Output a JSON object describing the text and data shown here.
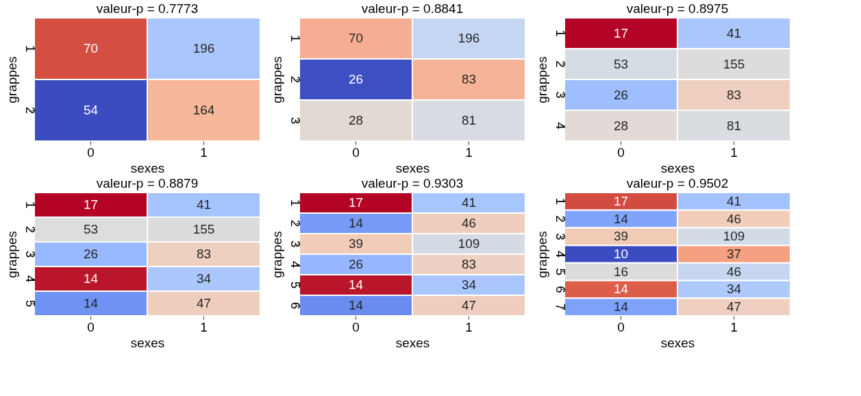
{
  "chart_data": [
    {
      "type": "heatmap",
      "data_labels": true,
      "title": "valeur-p = 0.7773",
      "xlabel": "sexes",
      "ylabel": "grappes",
      "categories": [
        "0",
        "1"
      ],
      "y_categories": [
        "1",
        "2"
      ],
      "cells": [
        [
          70,
          196
        ],
        [
          54,
          164
        ]
      ],
      "colors": [
        [
          "#d44e41",
          "#aac7fd"
        ],
        [
          "#3b4cc0",
          "#f6b79a"
        ]
      ]
    },
    {
      "type": "heatmap",
      "data_labels": true,
      "title": "valeur-p = 0.8841",
      "xlabel": "sexes",
      "ylabel": "grappes",
      "categories": [
        "0",
        "1"
      ],
      "y_categories": [
        "1",
        "2",
        "3"
      ],
      "cells": [
        [
          70,
          196
        ],
        [
          26,
          83
        ],
        [
          28,
          81
        ]
      ],
      "colors": [
        [
          "#f5ae94",
          "#c5d6f2"
        ],
        [
          "#3d50c3",
          "#f5b497"
        ],
        [
          "#e3d9d3",
          "#d8dce2"
        ]
      ]
    },
    {
      "type": "heatmap",
      "data_labels": true,
      "title": "valeur-p = 0.8975",
      "xlabel": "sexes",
      "ylabel": "grappes",
      "categories": [
        "0",
        "1"
      ],
      "y_categories": [
        "1",
        "2",
        "3",
        "4"
      ],
      "cells": [
        [
          17,
          41
        ],
        [
          53,
          155
        ],
        [
          26,
          83
        ],
        [
          28,
          81
        ]
      ],
      "colors": [
        [
          "#b40426",
          "#a9c6fd"
        ],
        [
          "#d6dce4",
          "#dedcdb"
        ],
        [
          "#9ebeff",
          "#efcfbf"
        ],
        [
          "#e1dad6",
          "#d9dce1"
        ]
      ]
    },
    {
      "type": "heatmap",
      "data_labels": true,
      "title": "valeur-p = 0.8879",
      "xlabel": "sexes",
      "ylabel": "grappes",
      "categories": [
        "0",
        "1"
      ],
      "y_categories": [
        "1",
        "2",
        "3",
        "4",
        "5"
      ],
      "cells": [
        [
          17,
          41
        ],
        [
          53,
          155
        ],
        [
          26,
          83
        ],
        [
          14,
          34
        ],
        [
          14,
          47
        ]
      ],
      "colors": [
        [
          "#b40426",
          "#a6c4fe"
        ],
        [
          "#dcdddd",
          "#dddcdc"
        ],
        [
          "#98b9ff",
          "#eed0c0"
        ],
        [
          "#ba162b",
          "#abc8fd"
        ],
        [
          "#6f92f3",
          "#efcebd"
        ]
      ]
    },
    {
      "type": "heatmap",
      "data_labels": true,
      "title": "valeur-p = 0.9303",
      "xlabel": "sexes",
      "ylabel": "grappes",
      "categories": [
        "0",
        "1"
      ],
      "y_categories": [
        "1",
        "2",
        "3",
        "4",
        "5",
        "6"
      ],
      "cells": [
        [
          17,
          41
        ],
        [
          14,
          46
        ],
        [
          39,
          109
        ],
        [
          26,
          83
        ],
        [
          14,
          34
        ],
        [
          14,
          47
        ]
      ],
      "colors": [
        [
          "#b40426",
          "#a7c5fe"
        ],
        [
          "#779af7",
          "#efcebd"
        ],
        [
          "#f1ccb8",
          "#d5dbe5"
        ],
        [
          "#96b7ff",
          "#edd1c2"
        ],
        [
          "#ba162b",
          "#aac7fd"
        ],
        [
          "#6a8bef",
          "#efcebd"
        ]
      ]
    },
    {
      "type": "heatmap",
      "data_labels": true,
      "title": "valeur-p = 0.9502",
      "xlabel": "sexes",
      "ylabel": "grappes",
      "categories": [
        "0",
        "1"
      ],
      "y_categories": [
        "1",
        "2",
        "3",
        "4",
        "5",
        "6",
        "7"
      ],
      "cells": [
        [
          17,
          41
        ],
        [
          14,
          46
        ],
        [
          39,
          109
        ],
        [
          10,
          37
        ],
        [
          16,
          46
        ],
        [
          14,
          34
        ],
        [
          14,
          47
        ]
      ],
      "colors": [
        [
          "#d24b40",
          "#a3c2fe"
        ],
        [
          "#81a4fb",
          "#f1cdba"
        ],
        [
          "#f2cbb7",
          "#d3dbe7"
        ],
        [
          "#3b4cc0",
          "#f5a081"
        ],
        [
          "#dddcdc",
          "#c6d6f1"
        ],
        [
          "#dc5d4a",
          "#aec9fc"
        ],
        [
          "#7ea1fa",
          "#efcfbf"
        ]
      ]
    }
  ]
}
